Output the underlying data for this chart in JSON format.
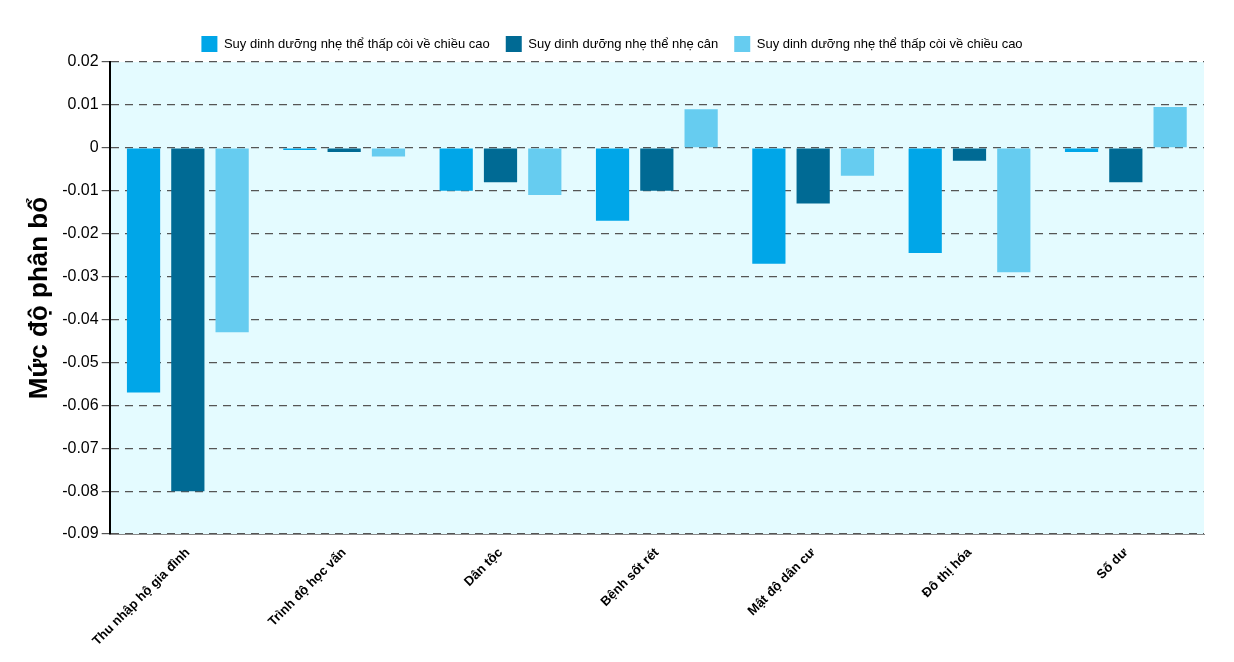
{
  "chart_data": {
    "type": "bar",
    "categories": [
      "Thu nhập hộ gia đình",
      "Trình độ học vấn",
      "Dân tộc",
      "Bệnh sốt rét",
      "Mật độ dân cư",
      "Đô thị hóa",
      "Số dư"
    ],
    "series": [
      {
        "name": "Suy dinh dưỡng nhẹ thể thấp còi về chiều cao",
        "color": "#00a6e8",
        "values": [
          -0.057,
          -0.0005,
          -0.01,
          -0.017,
          -0.027,
          -0.0245,
          -0.001
        ]
      },
      {
        "name": "Suy dinh dưỡng nhẹ thể nhẹ cân",
        "color": "#006a94",
        "values": [
          -0.08,
          -0.001,
          -0.008,
          -0.01,
          -0.013,
          -0.003,
          -0.008
        ]
      },
      {
        "name": "Suy dinh dưỡng nhẹ thể thấp còi về chiều cao",
        "color": "#66ccf0",
        "values": [
          -0.043,
          -0.002,
          -0.011,
          0.009,
          -0.0065,
          -0.029,
          0.0095
        ]
      }
    ],
    "ylabel": "Mức độ phân bổ",
    "ylim": [
      -0.09,
      0.02
    ],
    "yticks": [
      0.02,
      0.01,
      0,
      -0.01,
      -0.02,
      -0.03,
      -0.04,
      -0.05,
      -0.06,
      -0.07,
      -0.08,
      -0.09
    ],
    "grid": "y",
    "legend": "top"
  }
}
